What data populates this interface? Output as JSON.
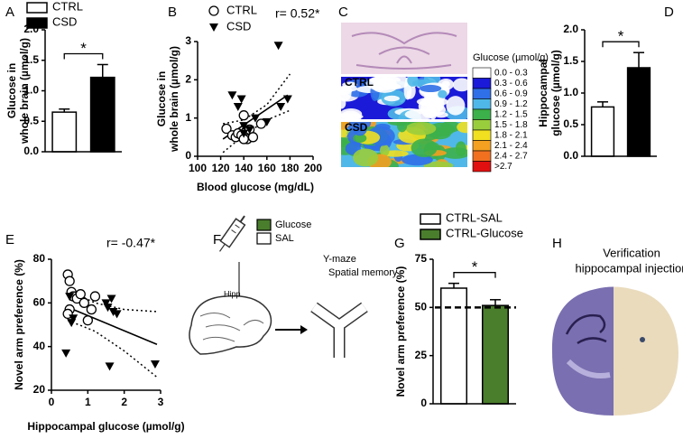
{
  "chart_data": [
    {
      "type": "bar",
      "panel": "A",
      "ylabel": [
        "Glucose in",
        "whole brain (µmol/g)"
      ],
      "ylim": [
        0,
        2
      ],
      "yticks": [
        {
          "value": 0,
          "label": "0.0"
        },
        0.5,
        {
          "value": 1,
          "label": "1.0"
        },
        1.5,
        {
          "value": 2,
          "label": "2.0"
        }
      ],
      "series": [
        {
          "name": "CTRL",
          "color": "#ffffff",
          "values": [
            0.65
          ],
          "errors": [
            0.05
          ]
        },
        {
          "name": "CSD",
          "color": "#000000",
          "values": [
            1.22
          ],
          "errors": [
            0.21
          ]
        }
      ],
      "significance": "*",
      "legend": true
    },
    {
      "type": "scatter",
      "panel": "B",
      "ylabel": [
        "Glucose in",
        "whole brain (µmol/g)"
      ],
      "xlabel": "Blood glucose (mg/dL)",
      "xlim": [
        100,
        200
      ],
      "xticks": [
        100,
        120,
        140,
        160,
        180,
        200
      ],
      "ylim": [
        0,
        3
      ],
      "yticks": [
        0,
        1,
        2,
        3
      ],
      "annotation": "r= 0.52*",
      "legend": true,
      "series": [
        {
          "name": "CTRL",
          "marker": "circle",
          "color": "#000000",
          "x": [
            125,
            130,
            133,
            135,
            138,
            140,
            142,
            143,
            145,
            148,
            155,
            140
          ],
          "values": [
            0.72,
            0.55,
            0.5,
            0.6,
            0.55,
            1.07,
            0.65,
            0.45,
            0.7,
            0.5,
            0.85,
            0.45
          ]
        },
        {
          "name": "CSD",
          "marker": "triangle",
          "color": "#000000",
          "x": [
            130,
            135,
            138,
            140,
            145,
            150,
            160,
            170,
            172,
            178,
            140
          ],
          "values": [
            1.6,
            1.3,
            1.5,
            0.8,
            0.7,
            1.0,
            0.9,
            2.9,
            1.3,
            1.5,
            0.6
          ]
        }
      ],
      "fit": {
        "x": [
          122,
          178
        ],
        "y": [
          0.45,
          1.6
        ]
      },
      "ci_upper": {
        "x": [
          122,
          140,
          160,
          180
        ],
        "y": [
          0.85,
          0.95,
          1.35,
          2.15
        ]
      },
      "ci_lower": {
        "x": [
          122,
          140,
          160,
          180
        ],
        "y": [
          0.1,
          0.55,
          0.95,
          1.2
        ]
      }
    },
    {
      "type": "bar",
      "panel": "D",
      "ylabel": [
        "Hippocampal",
        "glucose (µmol/g)"
      ],
      "ylim": [
        0,
        2
      ],
      "yticks": [
        {
          "value": 0,
          "label": "0.0"
        },
        0.5,
        {
          "value": 1,
          "label": "1.0"
        },
        1.5,
        {
          "value": 2,
          "label": "2.0"
        }
      ],
      "series": [
        {
          "color": "#ffffff",
          "values": [
            0.78
          ],
          "errors": [
            0.08
          ]
        },
        {
          "color": "#000000",
          "values": [
            1.4
          ],
          "errors": [
            0.24
          ]
        }
      ],
      "significance": "*",
      "legend": false
    },
    {
      "type": "scatter",
      "panel": "E",
      "ylabel": [
        "Novel arm preference (%)"
      ],
      "xlabel": "Hippocampal glucose (µmol/g)",
      "xlim": [
        0,
        3
      ],
      "xticks": [
        0,
        1,
        2,
        3
      ],
      "ylim": [
        20,
        80
      ],
      "yticks": [
        20,
        40,
        60,
        80
      ],
      "annotation": "r= -0.47*",
      "legend": false,
      "series": [
        {
          "marker": "circle",
          "color": "#000000",
          "x": [
            0.45,
            0.5,
            0.55,
            0.6,
            0.7,
            0.8,
            0.9,
            1.0,
            1.1,
            1.2,
            0.5,
            0.45
          ],
          "values": [
            73,
            70,
            65,
            63,
            62,
            64,
            60,
            52,
            57,
            63,
            57,
            55
          ]
        },
        {
          "marker": "triangle",
          "color": "#000000",
          "x": [
            0.5,
            0.6,
            0.55,
            1.5,
            1.55,
            1.7,
            1.8,
            1.6,
            2.85,
            0.4,
            1.65
          ],
          "values": [
            63,
            53,
            51,
            60,
            58,
            56,
            55,
            31,
            32,
            37,
            62
          ]
        }
      ],
      "fit": {
        "x": [
          0.45,
          2.9
        ],
        "y": [
          58,
          41
        ]
      },
      "ci_upper": {
        "x": [
          0.45,
          1.2,
          2,
          2.9
        ],
        "y": [
          66,
          60,
          57,
          56
        ]
      },
      "ci_lower": {
        "x": [
          0.45,
          1.2,
          2,
          2.9
        ],
        "y": [
          52,
          47,
          38,
          26
        ]
      }
    },
    {
      "type": "bar",
      "panel": "G",
      "ylabel": [
        "Novel arm preference (%)"
      ],
      "ylim": [
        0,
        75
      ],
      "yticks": [
        0,
        25,
        50,
        75
      ],
      "series": [
        {
          "name": "CTRL-SAL",
          "color": "#ffffff",
          "values": [
            60
          ],
          "errors": [
            2.5
          ]
        },
        {
          "name": "CTRL-Glucose",
          "color": "#4a7d2c",
          "values": [
            51
          ],
          "errors": [
            3
          ]
        }
      ],
      "reference_line": 50,
      "significance": "*",
      "legend": true
    }
  ],
  "heatmap_panel": {
    "panel": "C",
    "rows": [
      "CTRL",
      "CSD"
    ],
    "scale_title": "Glucose (µmol/g)",
    "scale": [
      {
        "label": "0.0 - 0.3",
        "color": "#ffffff"
      },
      {
        "label": "0.3 - 0.6",
        "color": "#1a1ad8"
      },
      {
        "label": "0.6 - 0.9",
        "color": "#2f6fe8"
      },
      {
        "label": "0.9 - 1.2",
        "color": "#4fb8e8"
      },
      {
        "label": "1.2 - 1.5",
        "color": "#3cb04a"
      },
      {
        "label": "1.5 - 1.8",
        "color": "#9acd3c"
      },
      {
        "label": "1.8 - 2.1",
        "color": "#f0e020"
      },
      {
        "label": "2.1 - 2.4",
        "color": "#f4a020"
      },
      {
        "label": "2.4 - 2.7",
        "color": "#f07020"
      },
      {
        "label": ">2.7",
        "color": "#e01010"
      }
    ]
  },
  "diagram_panel": {
    "panel": "F",
    "legend": [
      {
        "label": "Glucose",
        "color": "#4a7d2c"
      },
      {
        "label": "SAL",
        "color": "#ffffff"
      }
    ],
    "region": "Hipp",
    "task": [
      "Y-maze",
      "Spatial memory"
    ]
  },
  "image_panel": {
    "panel": "H",
    "caption": [
      "Verification",
      "hippocampal injection"
    ]
  }
}
